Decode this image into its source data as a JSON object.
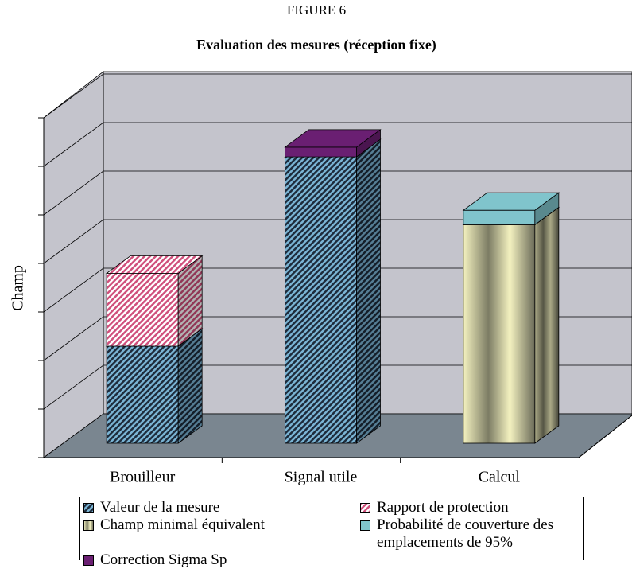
{
  "chart_data": {
    "type": "bar3d_stacked",
    "title": "FIGURE 6",
    "subtitle": "Evaluation des mesures (réception fixe)",
    "y_label": "Champ",
    "categories": [
      "Brouilleur",
      "Signal utile",
      "Calcul"
    ],
    "ylim": [
      0,
      7
    ],
    "yticks": [
      0,
      1,
      2,
      3,
      4,
      5,
      6,
      7
    ],
    "grid": true,
    "series": [
      {
        "name": "Valeur de la mesure",
        "color": "#7ab4d4",
        "fill": "hatch",
        "hatch_bg": "#1e2c3c",
        "values": [
          2.0,
          5.9,
          null
        ]
      },
      {
        "name": "Rapport de protection",
        "color": "#d0507c",
        "fill": "hatch",
        "hatch_bg": "#ffffff",
        "values": [
          1.5,
          null,
          null
        ]
      },
      {
        "name": "Champ minimal équivalent",
        "color": "#f4f2c0",
        "fill": "gradient",
        "values": [
          null,
          null,
          4.5
        ]
      },
      {
        "name": "Probabilité de couverture des emplacements de 95%",
        "color": "#80c4cc",
        "fill": "solid",
        "values": [
          null,
          null,
          0.3
        ]
      },
      {
        "name": "Correction Sigma Sp",
        "color": "#6a1f72",
        "fill": "solid",
        "values": [
          null,
          0.2,
          null
        ]
      }
    ]
  }
}
